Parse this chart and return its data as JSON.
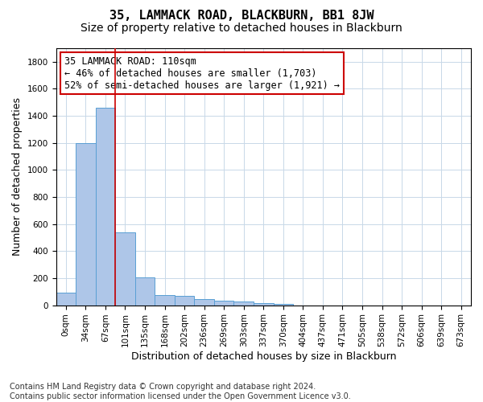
{
  "title": "35, LAMMACK ROAD, BLACKBURN, BB1 8JW",
  "subtitle": "Size of property relative to detached houses in Blackburn",
  "xlabel": "Distribution of detached houses by size in Blackburn",
  "ylabel": "Number of detached properties",
  "bar_values": [
    95,
    1200,
    1460,
    540,
    205,
    75,
    70,
    48,
    35,
    25,
    18,
    10,
    0,
    0,
    0,
    0,
    0,
    0,
    0,
    0,
    0
  ],
  "bar_labels": [
    "0sqm",
    "34sqm",
    "67sqm",
    "101sqm",
    "135sqm",
    "168sqm",
    "202sqm",
    "236sqm",
    "269sqm",
    "303sqm",
    "337sqm",
    "370sqm",
    "404sqm",
    "437sqm",
    "471sqm",
    "505sqm",
    "538sqm",
    "572sqm",
    "606sqm",
    "639sqm",
    "673sqm"
  ],
  "bar_color": "#aec6e8",
  "bar_edge_color": "#5a9fd4",
  "vline_x_index": 3,
  "vline_color": "#cc0000",
  "annotation_text": "35 LAMMACK ROAD: 110sqm\n← 46% of detached houses are smaller (1,703)\n52% of semi-detached houses are larger (1,921) →",
  "annotation_box_color": "#ffffff",
  "annotation_box_edge": "#cc0000",
  "ylim": [
    0,
    1900
  ],
  "yticks": [
    0,
    200,
    400,
    600,
    800,
    1000,
    1200,
    1400,
    1600,
    1800
  ],
  "bg_color": "#ffffff",
  "grid_color": "#c8d8e8",
  "footer": "Contains HM Land Registry data © Crown copyright and database right 2024.\nContains public sector information licensed under the Open Government Licence v3.0.",
  "title_fontsize": 11,
  "subtitle_fontsize": 10,
  "xlabel_fontsize": 9,
  "ylabel_fontsize": 9,
  "tick_fontsize": 7.5,
  "annotation_fontsize": 8.5,
  "footer_fontsize": 7
}
